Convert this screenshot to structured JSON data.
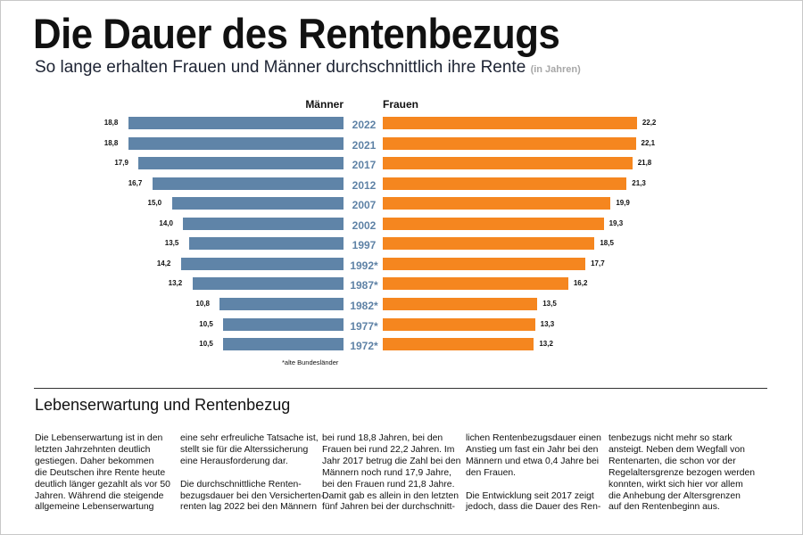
{
  "header": {
    "title": "Die Dauer des Rentenbezugs",
    "subtitle": "So lange erhalten Frauen und Männer durchschnittlich ihre Rente",
    "unit": "(in Jahren)"
  },
  "chart_data": {
    "type": "bar",
    "orientation": "horizontal-butterfly",
    "categories": [
      "2022",
      "2021",
      "2017",
      "2012",
      "2007",
      "2002",
      "1997",
      "1992*",
      "1987*",
      "1982*",
      "1977*",
      "1972*"
    ],
    "series": [
      {
        "name": "Männer",
        "color": "#5f84a8",
        "values": [
          18.8,
          18.8,
          17.9,
          16.7,
          15.0,
          14.0,
          13.5,
          14.2,
          13.2,
          10.8,
          10.5,
          10.5
        ],
        "labels": [
          "18,8",
          "18,8",
          "17,9",
          "16,7",
          "15,0",
          "14,0",
          "13,5",
          "14,2",
          "13,2",
          "10,8",
          "10,5",
          "10,5"
        ]
      },
      {
        "name": "Frauen",
        "color": "#f5861f",
        "values": [
          22.2,
          22.1,
          21.8,
          21.3,
          19.9,
          19.3,
          18.5,
          17.7,
          16.2,
          13.5,
          13.3,
          13.2
        ],
        "labels": [
          "22,2",
          "22,1",
          "21,8",
          "21,3",
          "19,9",
          "19,3",
          "18,5",
          "17,7",
          "16,2",
          "13,5",
          "13,3",
          "13,2"
        ]
      }
    ],
    "footnote": "*alte Bundesländer"
  },
  "article": {
    "heading": "Lebenserwartung und Rentenbezug",
    "columns": [
      "Die Lebenserwartung ist in den\nletzten Jahrzehnten deutlich\ngestiegen. Daher bekommen\ndie Deutschen ihre Rente heute\ndeutlich länger gezahlt als vor 50\nJahren. Während die steigende\nallgemeine Lebenserwartung",
      "eine sehr erfreuliche Tatsache ist,\nstellt sie für die Alterssicherung\neine Herausforderung dar.\n\nDie durchschnittliche Renten-\nbezugsdauer bei den Versicherten-\nrenten lag 2022 bei den Männern",
      "bei rund 18,8 Jahren, bei den\nFrauen bei rund 22,2 Jahren. Im\nJahr 2017 betrug die Zahl bei den\nMännern noch rund 17,9 Jahre,\nbei den Frauen rund 21,8 Jahre.\nDamit gab es allein in den letzten\nfünf Jahren bei der durchschnitt-",
      "lichen Rentenbezugsdauer einen\nAnstieg um fast ein Jahr bei den\nMännern und etwa 0,4 Jahre bei\nden Frauen.\n\nDie Entwicklung seit 2017 zeigt\njedoch, dass die Dauer des Ren-",
      "tenbezugs nicht mehr so stark\nansteigt. Neben dem Wegfall von\nRentenarten, die schon vor der\nRegelaltersgrenze bezogen werden\nkonnten, wirkt sich hier vor allem\ndie Anhebung der Altersgrenzen\nauf den Rentenbeginn aus."
    ]
  }
}
